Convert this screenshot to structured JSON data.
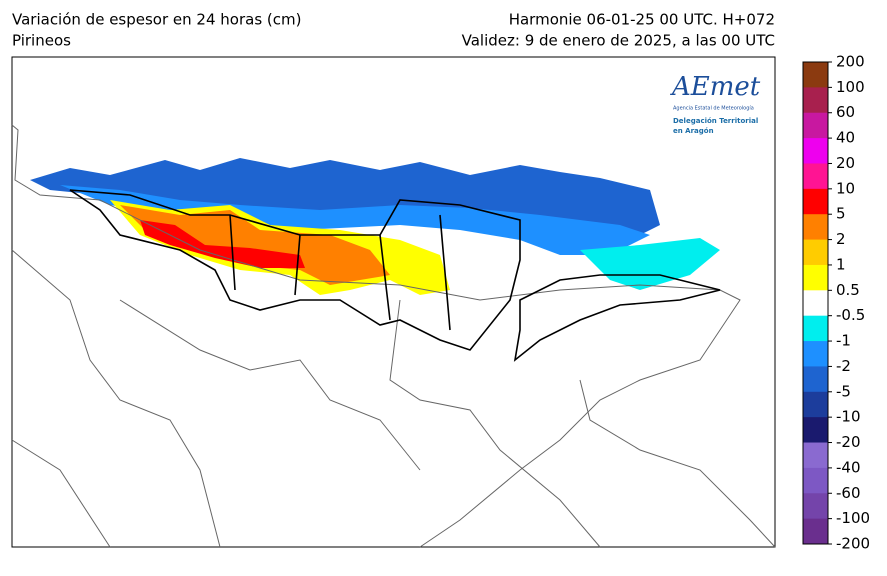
{
  "header": {
    "title_left": "Variación de espesor en 24 horas (cm)",
    "subtitle_left": "Pirineos",
    "title_right": "Harmonie 06-01-25 00 UTC. H+072",
    "subtitle_right": "Validez: 9 de enero de 2025, a las 00 UTC"
  },
  "logo": {
    "name": "AEmet",
    "agency": "Agencia Estatal de Meteorología",
    "delegation_1": "Delegación Territorial",
    "delegation_2": "en Aragón"
  },
  "colorbar": {
    "levels": [
      200,
      100,
      60,
      40,
      20,
      10,
      5,
      2,
      1,
      0.5,
      -0.5,
      -1,
      -2,
      -5,
      -10,
      -20,
      -40,
      -60,
      -100,
      -200
    ],
    "colors": [
      "#8b3a10",
      "#a8204e",
      "#c818a0",
      "#ee00ee",
      "#ff1493",
      "#ff0000",
      "#ff8000",
      "#ffcc00",
      "#ffff00",
      "#ffffff",
      "#00eeee",
      "#1e90ff",
      "#1e64d0",
      "#1c3d9c",
      "#1a1a6e",
      "#8a6ad0",
      "#7d58c4",
      "#7444aa",
      "#6a2f8e"
    ]
  }
}
